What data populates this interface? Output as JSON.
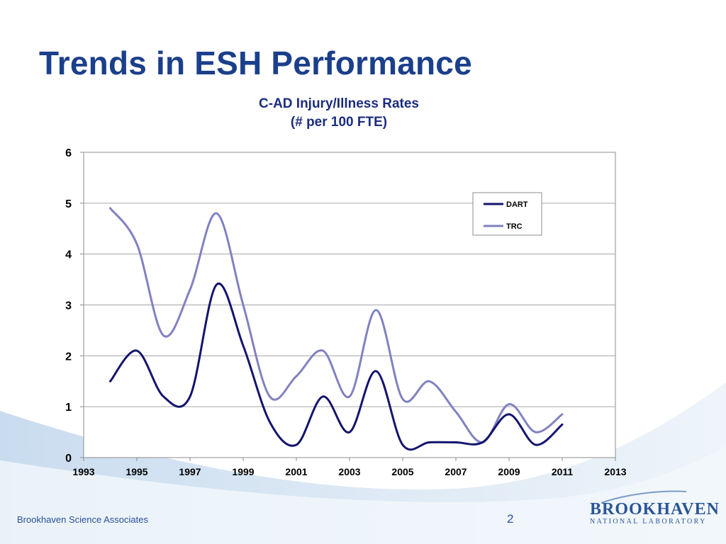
{
  "slide": {
    "title": "Trends in ESH Performance",
    "footer_left": "Brookhaven Science Associates",
    "page_number": "2",
    "logo": {
      "main": "BROOKHAVEN",
      "sub": "NATIONAL LABORATORY"
    }
  },
  "colors": {
    "title": "#1b3f8b",
    "dart": "#14146e",
    "trc": "#8181c1",
    "grid": "#a6a6a6"
  },
  "chart_data": {
    "type": "line",
    "title_lines": [
      "C-AD Injury/Illness Rates",
      "(# per 100 FTE)"
    ],
    "xlabel": "",
    "ylabel": "",
    "xlim": [
      1993,
      2013
    ],
    "ylim": [
      0,
      6
    ],
    "x_ticks": [
      1993,
      1995,
      1997,
      1999,
      2001,
      2003,
      2005,
      2007,
      2009,
      2011,
      2013
    ],
    "y_ticks": [
      0,
      1,
      2,
      3,
      4,
      5,
      6
    ],
    "grid": "horizontal",
    "legend_position": "top-right",
    "series": [
      {
        "name": "DART",
        "color": "#14146e",
        "x": [
          1994,
          1995,
          1996,
          1997,
          1998,
          1999,
          2000,
          2001,
          2002,
          2003,
          2004,
          2005,
          2006,
          2007,
          2008,
          2009,
          2010,
          2011
        ],
        "y": [
          1.5,
          2.1,
          1.2,
          1.2,
          3.4,
          2.2,
          0.7,
          0.25,
          1.2,
          0.5,
          1.7,
          0.25,
          0.3,
          0.3,
          0.3,
          0.85,
          0.25,
          0.65
        ]
      },
      {
        "name": "TRC",
        "color": "#8181c1",
        "x": [
          1994,
          1995,
          1996,
          1997,
          1998,
          1999,
          2000,
          2001,
          2002,
          2003,
          2004,
          2005,
          2006,
          2007,
          2008,
          2009,
          2010,
          2011
        ],
        "y": [
          4.9,
          4.2,
          2.4,
          3.3,
          4.8,
          3.0,
          1.2,
          1.6,
          2.1,
          1.2,
          2.9,
          1.15,
          1.5,
          0.9,
          0.3,
          1.05,
          0.5,
          0.85
        ]
      }
    ]
  }
}
